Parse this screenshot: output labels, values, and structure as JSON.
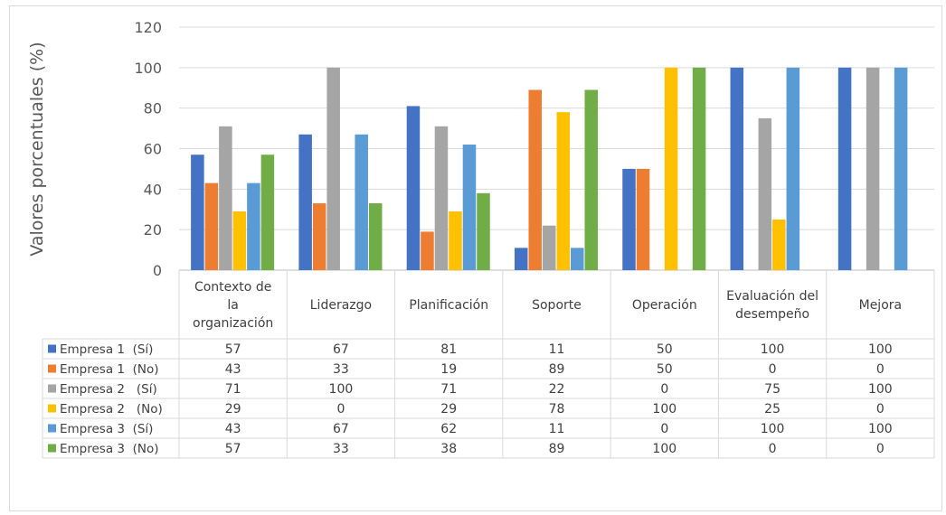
{
  "chart_data": {
    "type": "bar",
    "title": "",
    "xlabel": "",
    "ylabel": "Valores porcentuales (%)",
    "ylim": [
      0,
      120
    ],
    "yticks": [
      0,
      20,
      40,
      60,
      80,
      100,
      120
    ],
    "grid": true,
    "legend": "data-table",
    "categories": [
      [
        "Contexto de",
        "la",
        "organización"
      ],
      [
        "Liderazgo"
      ],
      [
        "Planificación"
      ],
      [
        "Soporte"
      ],
      [
        "Operación"
      ],
      [
        "Evaluación del",
        "desempeño"
      ],
      [
        "Mejora"
      ]
    ],
    "series": [
      {
        "name": "Empresa 1  (Sí)",
        "color": "#4472c4",
        "values": [
          57,
          67,
          81,
          11,
          50,
          100,
          100
        ]
      },
      {
        "name": "Empresa 1  (No)",
        "color": "#ed7d31",
        "values": [
          43,
          33,
          19,
          89,
          50,
          0,
          0
        ]
      },
      {
        "name": "Empresa 2   (Sí)",
        "color": "#a5a5a5",
        "values": [
          71,
          100,
          71,
          22,
          0,
          75,
          100
        ]
      },
      {
        "name": "Empresa 2   (No)",
        "color": "#ffc000",
        "values": [
          29,
          0,
          29,
          78,
          100,
          25,
          0
        ]
      },
      {
        "name": "Empresa 3  (Sí)",
        "color": "#5b9bd5",
        "values": [
          43,
          67,
          62,
          11,
          0,
          100,
          100
        ]
      },
      {
        "name": "Empresa 3  (No)",
        "color": "#70ad47",
        "values": [
          57,
          33,
          38,
          89,
          100,
          0,
          0
        ]
      }
    ]
  }
}
